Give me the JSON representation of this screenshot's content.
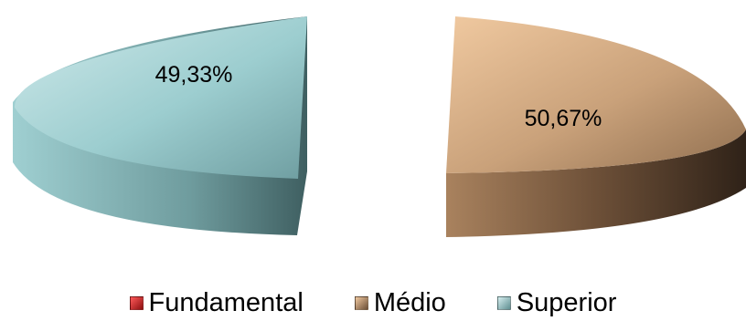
{
  "chart_data": {
    "type": "pie",
    "style": "3d-exploded",
    "categories": [
      "Fundamental",
      "Médio",
      "Superior"
    ],
    "values": [
      0,
      50.67,
      49.33
    ],
    "data_labels": [
      "",
      "50,67%",
      "49,33%"
    ],
    "colors": [
      "#c0181a",
      "#c9a27c",
      "#8fc4c6"
    ],
    "legend_position": "bottom"
  }
}
